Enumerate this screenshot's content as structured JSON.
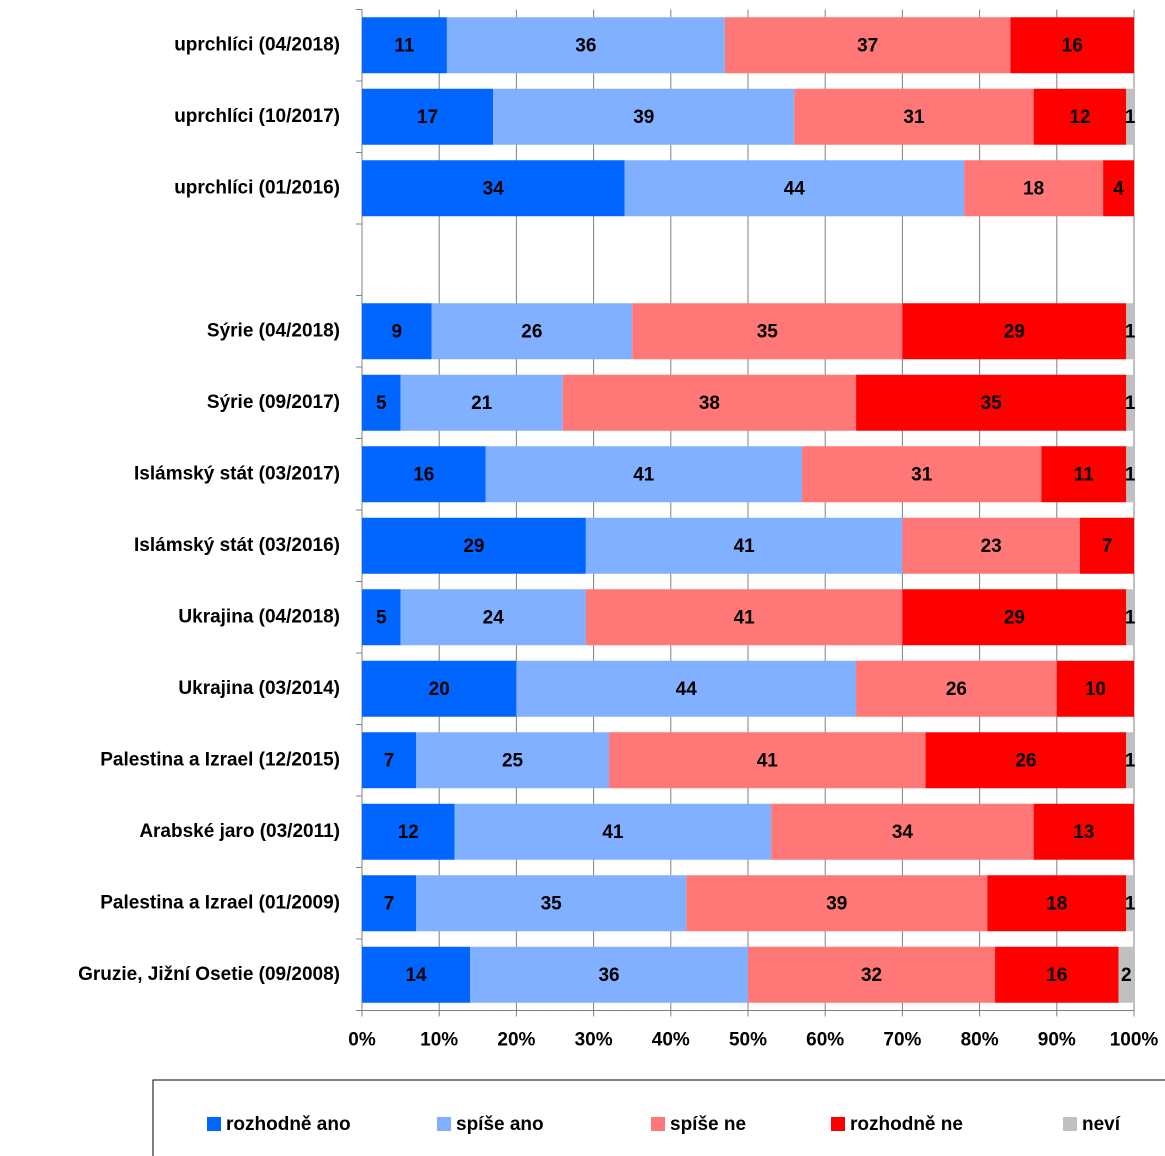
{
  "chart_data": {
    "type": "stacked-barh",
    "categories": [
      "uprchlíci (04/2018)",
      "uprchlíci (10/2017)",
      "uprchlíci (01/2016)",
      null,
      "Sýrie (04/2018)",
      "Sýrie (09/2017)",
      "Islámský stát (03/2017)",
      "Islámský stát (03/2016)",
      "Ukrajina (04/2018)",
      "Ukrajina (03/2014)",
      "Palestina a Izrael (12/2015)",
      "Arabské jaro (03/2011)",
      "Palestina a Izrael (01/2009)",
      "Gruzie, Jižní Osetie (09/2008)"
    ],
    "series": [
      {
        "name": "rozhodně ano",
        "color": "#0066ff",
        "values": [
          11,
          17,
          34,
          null,
          9,
          5,
          16,
          29,
          5,
          20,
          7,
          12,
          7,
          14
        ]
      },
      {
        "name": "spíše ano",
        "color": "#80b0ff",
        "values": [
          36,
          39,
          44,
          null,
          26,
          21,
          41,
          41,
          24,
          44,
          25,
          41,
          35,
          36
        ]
      },
      {
        "name": "spíše ne",
        "color": "#ff7777",
        "values": [
          37,
          31,
          18,
          null,
          35,
          38,
          31,
          23,
          41,
          26,
          41,
          34,
          39,
          32
        ]
      },
      {
        "name": "rozhodně ne",
        "color": "#ff0000",
        "values": [
          16,
          12,
          4,
          null,
          29,
          35,
          11,
          7,
          29,
          10,
          26,
          13,
          18,
          16
        ]
      },
      {
        "name": "neví",
        "color": "#c0c0c0",
        "values": [
          null,
          1,
          null,
          null,
          1,
          1,
          1,
          null,
          1,
          null,
          1,
          null,
          1,
          2
        ]
      }
    ],
    "xlim": [
      0,
      100
    ],
    "xticks": [
      {
        "value": 0,
        "label": "0%"
      },
      {
        "value": 10,
        "label": "10%"
      },
      {
        "value": 20,
        "label": "20%"
      },
      {
        "value": 30,
        "label": "30%"
      },
      {
        "value": 40,
        "label": "40%"
      },
      {
        "value": 50,
        "label": "50%"
      },
      {
        "value": 60,
        "label": "60%"
      },
      {
        "value": 70,
        "label": "70%"
      },
      {
        "value": 80,
        "label": "80%"
      },
      {
        "value": 90,
        "label": "90%"
      },
      {
        "value": 100,
        "label": "100%"
      }
    ],
    "grid": true,
    "legend": "bottom"
  }
}
